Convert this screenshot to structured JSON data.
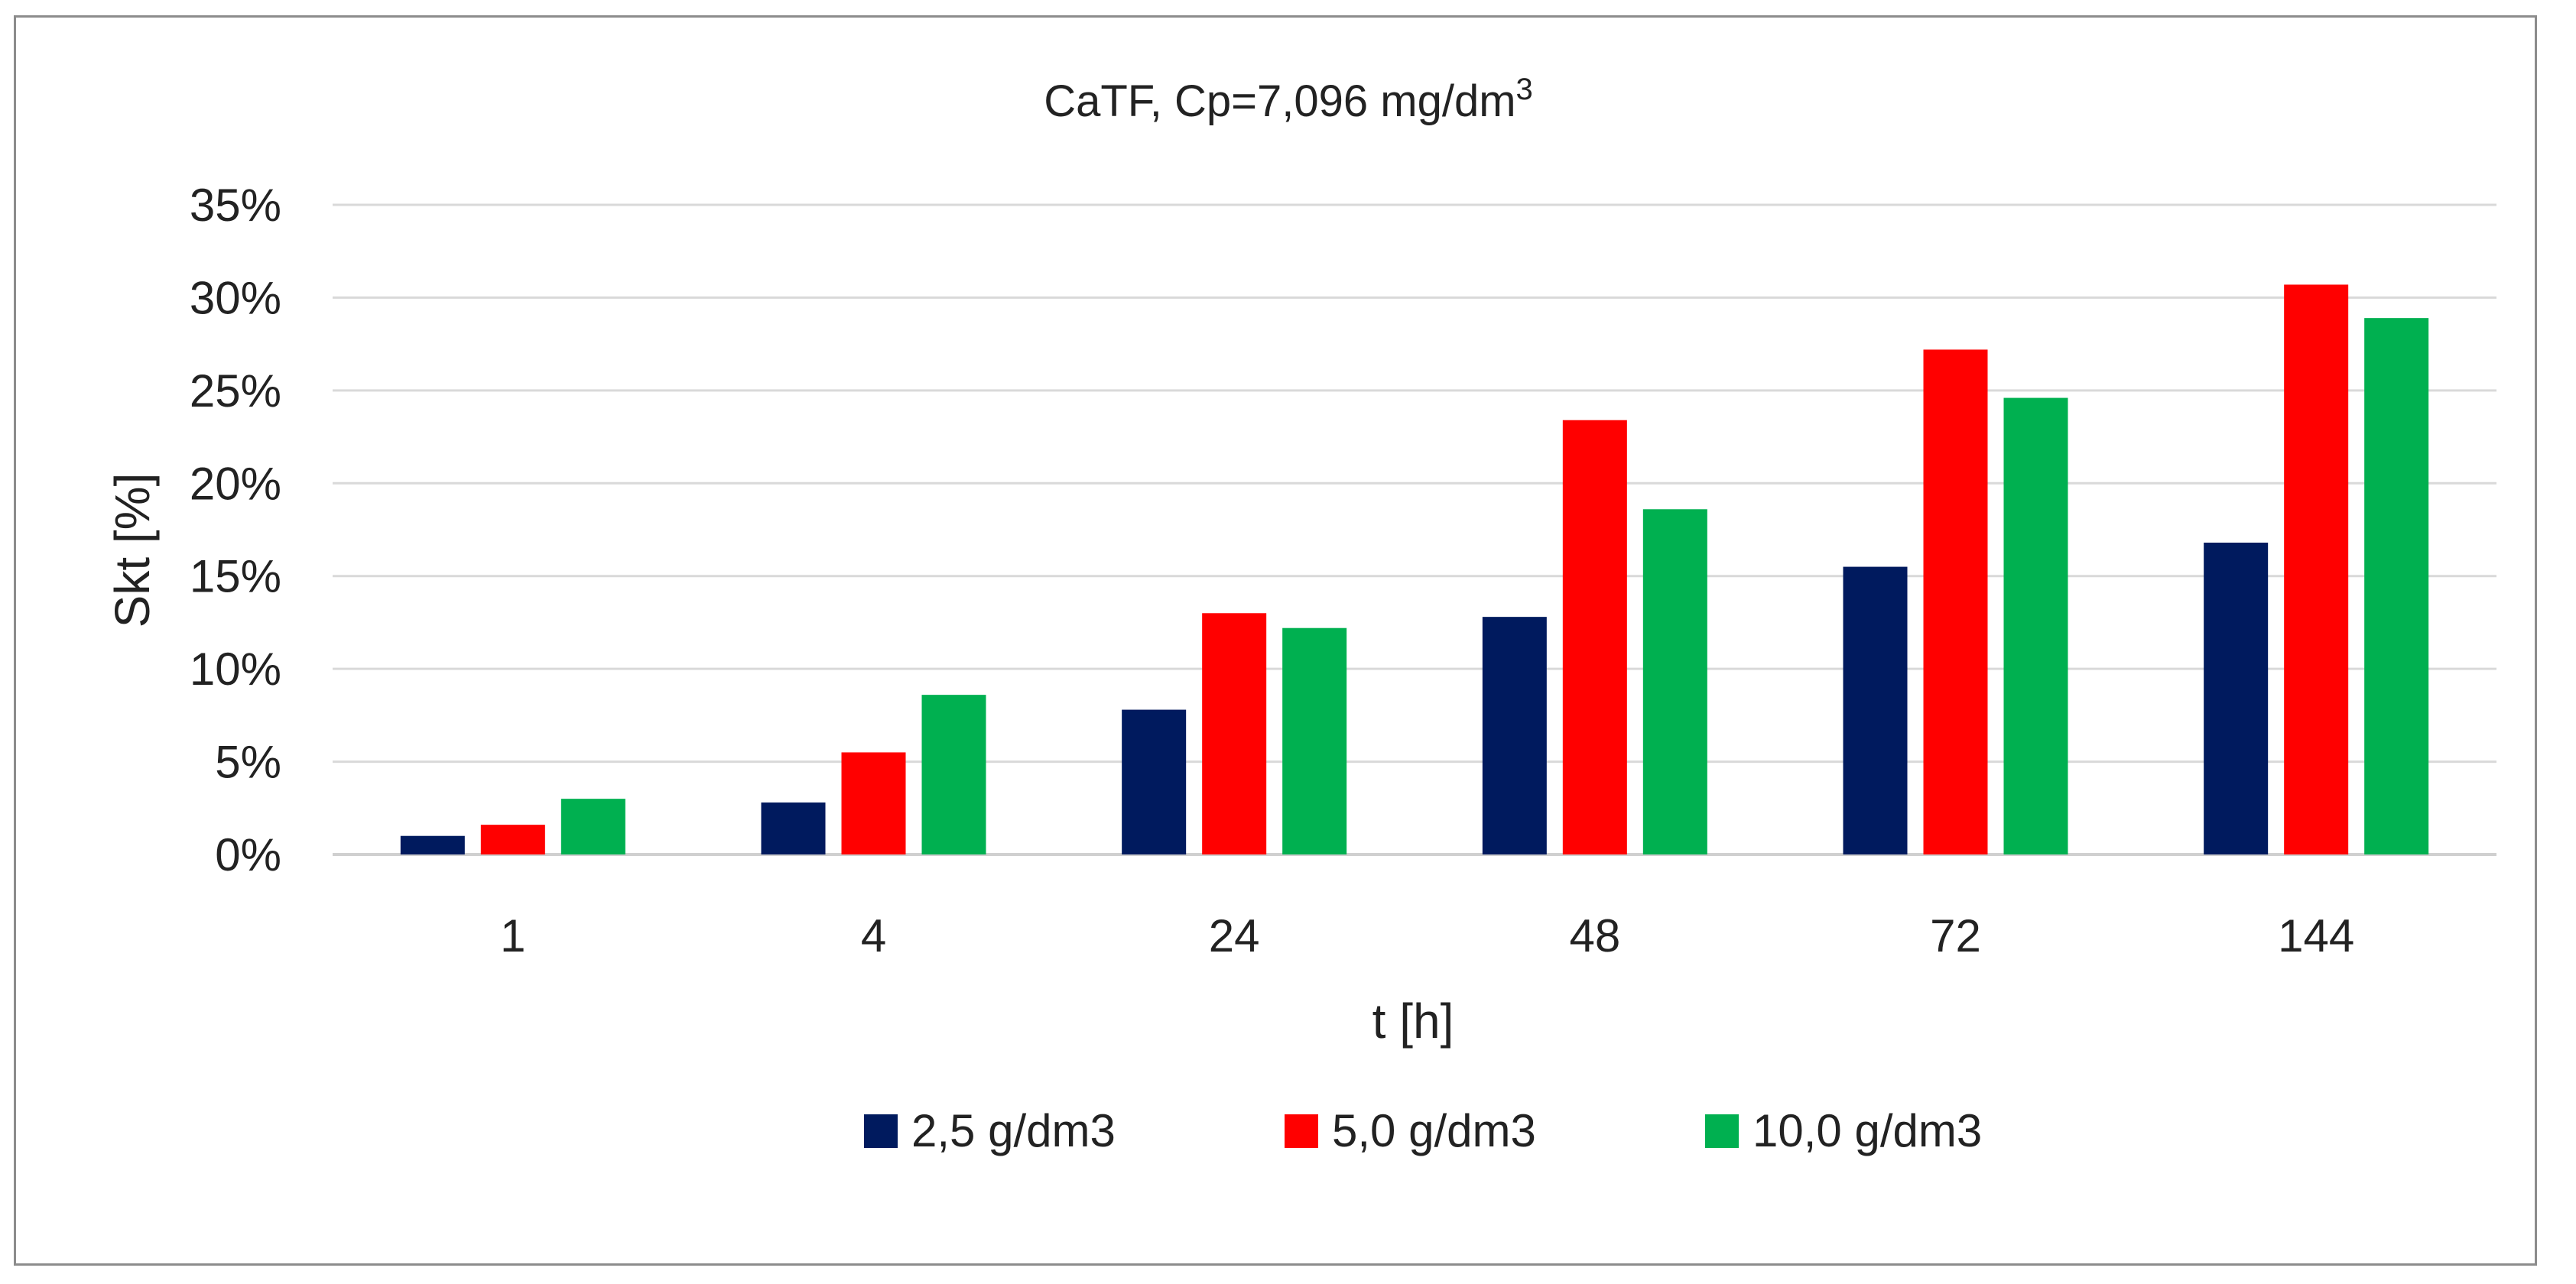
{
  "chart_data": {
    "type": "bar",
    "title": "CaTF, Cp=7,096 mg/dm",
    "title_superscript": "3",
    "xlabel": "t [h]",
    "ylabel": "Skt [%]",
    "categories": [
      "1",
      "4",
      "24",
      "48",
      "72",
      "144"
    ],
    "ylim": [
      0,
      35
    ],
    "yticks": [
      0,
      5,
      10,
      15,
      20,
      25,
      30,
      35
    ],
    "ytick_labels": [
      "0%",
      "5%",
      "10%",
      "15%",
      "20%",
      "25%",
      "30%",
      "35%"
    ],
    "grid": true,
    "legend_position": "bottom",
    "series": [
      {
        "name": "2,5 g/dm3",
        "color": "#001a5e",
        "values": [
          1.0,
          2.8,
          7.8,
          12.8,
          15.5,
          16.8
        ]
      },
      {
        "name": "5,0 g/dm3",
        "color": "#ff0000",
        "values": [
          1.6,
          5.5,
          13.0,
          23.4,
          27.2,
          30.7
        ]
      },
      {
        "name": "10,0 g/dm3",
        "color": "#00b050",
        "values": [
          3.0,
          8.6,
          12.2,
          18.6,
          24.6,
          28.9
        ]
      }
    ]
  }
}
